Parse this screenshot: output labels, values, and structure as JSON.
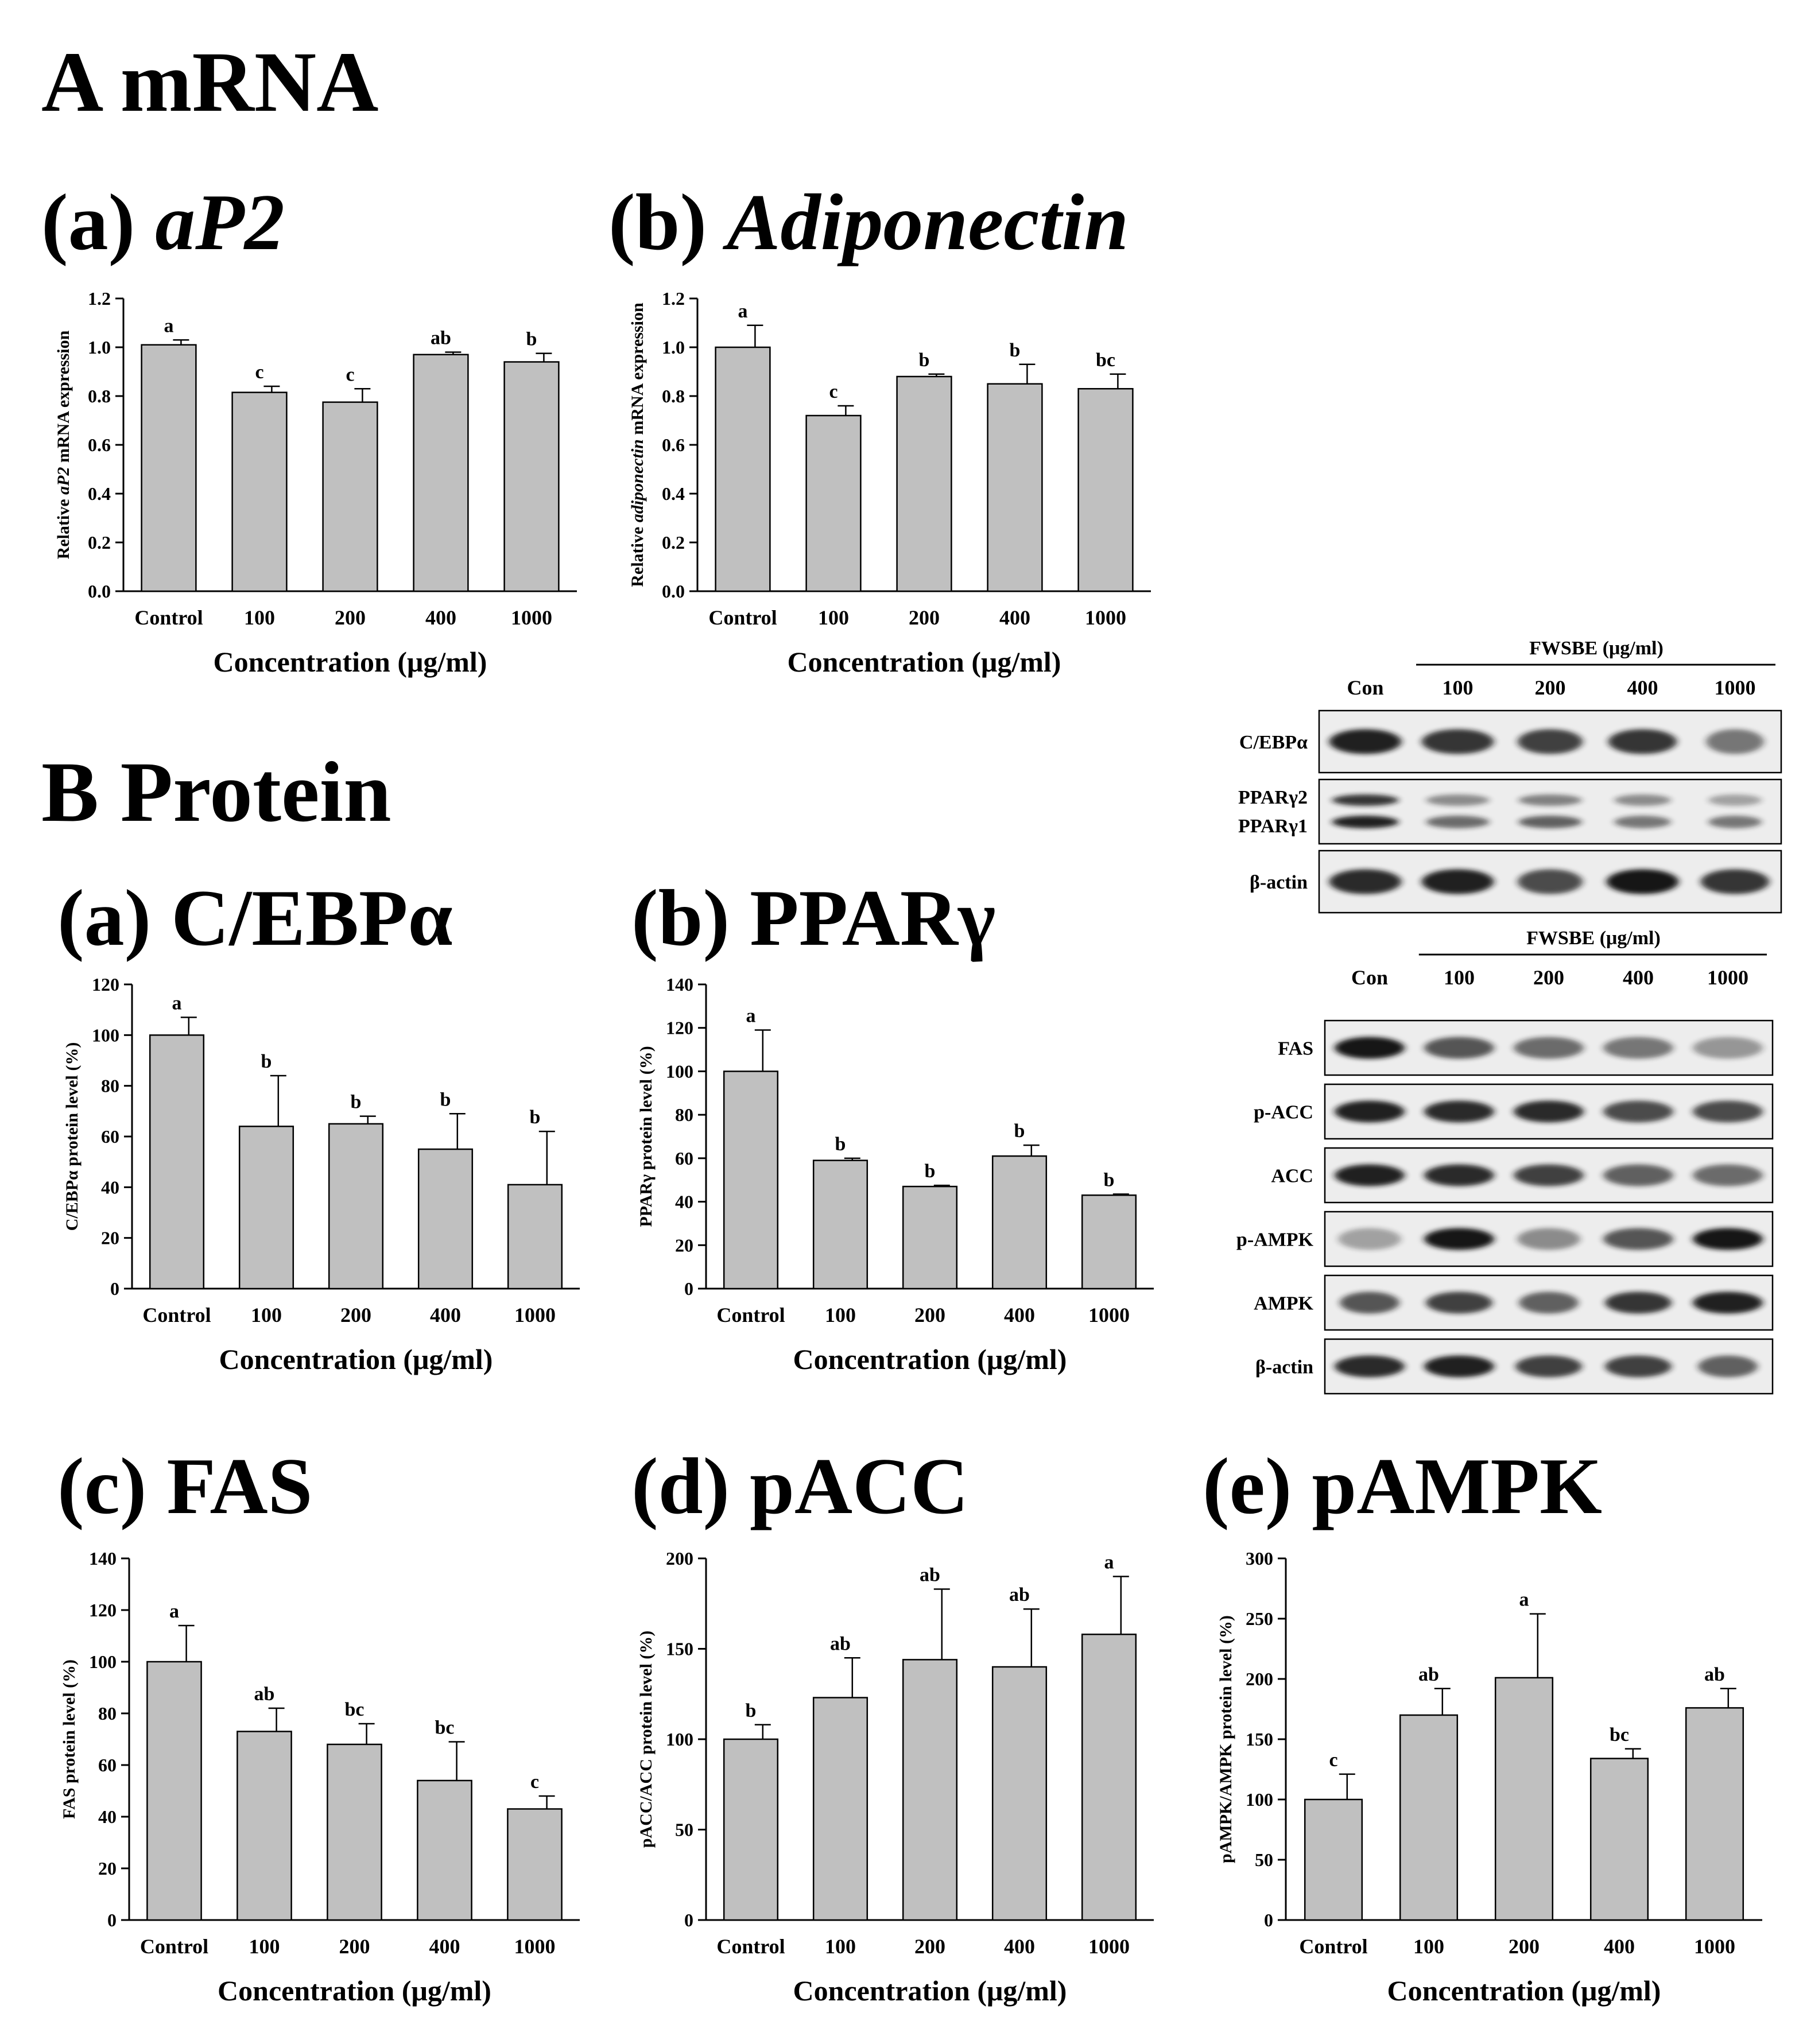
{
  "sections": {
    "A": "A mRNA",
    "B": "B Protein"
  },
  "panels": {
    "A_a": {
      "letter": "(a)",
      "name": "aP2"
    },
    "A_b": {
      "letter": "(b)",
      "name": "Adiponectin"
    },
    "B_a": {
      "letter": "(a)",
      "name": "C/EBPα"
    },
    "B_b": {
      "letter": "(b)",
      "name": "PPARγ"
    },
    "B_c": {
      "letter": "(c)",
      "name": "FAS"
    },
    "B_d": {
      "letter": "(d)",
      "name": "pACC"
    },
    "B_e": {
      "letter": "(e)",
      "name": "pAMPK"
    }
  },
  "colors": {
    "bar": "#c0c0c0",
    "stroke": "#000000",
    "blot_bg": "#ededed",
    "band": "#151515"
  },
  "chart_data": [
    {
      "id": "A_a",
      "type": "bar",
      "categories": [
        "Control",
        "100",
        "200",
        "400",
        "1000"
      ],
      "values": [
        1.01,
        0.815,
        0.775,
        0.97,
        0.94
      ],
      "errors": [
        0.02,
        0.025,
        0.055,
        0.01,
        0.035
      ],
      "labels": [
        "a",
        "c",
        "c",
        "ab",
        "b"
      ],
      "ylim": [
        0,
        1.2
      ],
      "yticks": [
        "0.0",
        "0.2",
        "0.4",
        "0.6",
        "0.8",
        "1.0",
        "1.2"
      ],
      "ylabel_parts": [
        {
          "t": "Relative ",
          "i": false
        },
        {
          "t": "aP2",
          "i": true
        },
        {
          "t": " mRNA expression",
          "i": false
        }
      ],
      "xlabel": "Concentration (μg/ml)"
    },
    {
      "id": "A_b",
      "type": "bar",
      "categories": [
        "Control",
        "100",
        "200",
        "400",
        "1000"
      ],
      "values": [
        1.0,
        0.72,
        0.88,
        0.85,
        0.83
      ],
      "errors": [
        0.09,
        0.04,
        0.01,
        0.08,
        0.06
      ],
      "labels": [
        "a",
        "c",
        "b",
        "b",
        "bc"
      ],
      "ylim": [
        0,
        1.2
      ],
      "yticks": [
        "0.0",
        "0.2",
        "0.4",
        "0.6",
        "0.8",
        "1.0",
        "1.2"
      ],
      "ylabel_parts": [
        {
          "t": "Relative ",
          "i": false
        },
        {
          "t": "adiponectin",
          "i": true
        },
        {
          "t": " mRNA expression",
          "i": false
        }
      ],
      "xlabel": "Concentration (μg/ml)"
    },
    {
      "id": "B_a",
      "type": "bar",
      "categories": [
        "Control",
        "100",
        "200",
        "400",
        "1000"
      ],
      "values": [
        100,
        64,
        65,
        55,
        41
      ],
      "errors": [
        7,
        20,
        3,
        14,
        21
      ],
      "labels": [
        "a",
        "b",
        "b",
        "b",
        "b"
      ],
      "ylim": [
        0,
        120
      ],
      "yticks": [
        "0",
        "20",
        "40",
        "60",
        "80",
        "100",
        "120"
      ],
      "ylabel_parts": [
        {
          "t": "C/EBPα protein level (%)",
          "i": false
        }
      ],
      "xlabel": "Concentration (μg/ml)"
    },
    {
      "id": "B_b",
      "type": "bar",
      "categories": [
        "Control",
        "100",
        "200",
        "400",
        "1000"
      ],
      "values": [
        100,
        59,
        47,
        61,
        43
      ],
      "errors": [
        19,
        1,
        0.5,
        5,
        0.5
      ],
      "labels": [
        "a",
        "b",
        "b",
        "b",
        "b"
      ],
      "ylim": [
        0,
        140
      ],
      "yticks": [
        "0",
        "20",
        "40",
        "60",
        "80",
        "100",
        "120",
        "140"
      ],
      "ylabel_parts": [
        {
          "t": "PPARγ protein level (%)",
          "i": false
        }
      ],
      "xlabel": "Concentration (μg/ml)"
    },
    {
      "id": "B_c",
      "type": "bar",
      "categories": [
        "Control",
        "100",
        "200",
        "400",
        "1000"
      ],
      "values": [
        100,
        73,
        68,
        54,
        43
      ],
      "errors": [
        14,
        9,
        8,
        15,
        5
      ],
      "labels": [
        "a",
        "ab",
        "bc",
        "bc",
        "c"
      ],
      "ylim": [
        0,
        140
      ],
      "yticks": [
        "0",
        "20",
        "40",
        "60",
        "80",
        "100",
        "120",
        "140"
      ],
      "ylabel_parts": [
        {
          "t": "FAS protein level (%)",
          "i": false
        }
      ],
      "xlabel": "Concentration (μg/ml)"
    },
    {
      "id": "B_d",
      "type": "bar",
      "categories": [
        "Control",
        "100",
        "200",
        "400",
        "1000"
      ],
      "values": [
        100,
        123,
        144,
        140,
        158
      ],
      "errors": [
        8,
        22,
        39,
        32,
        32
      ],
      "labels": [
        "b",
        "ab",
        "ab",
        "ab",
        "a"
      ],
      "ylim": [
        0,
        200
      ],
      "yticks": [
        "0",
        "50",
        "100",
        "150",
        "200"
      ],
      "ylabel_parts": [
        {
          "t": "pACC/ACC protein level (%)",
          "i": false
        }
      ],
      "xlabel": "Concentration (μg/ml)"
    },
    {
      "id": "B_e",
      "type": "bar",
      "categories": [
        "Control",
        "100",
        "200",
        "400",
        "1000"
      ],
      "values": [
        100,
        170,
        201,
        134,
        176
      ],
      "errors": [
        21,
        22,
        53,
        8,
        16
      ],
      "labels": [
        "c",
        "ab",
        "a",
        "bc",
        "ab"
      ],
      "ylim": [
        0,
        300
      ],
      "yticks": [
        "0",
        "50",
        "100",
        "150",
        "200",
        "250",
        "300"
      ],
      "ylabel_parts": [
        {
          "t": "pAMPK/AMPK protein level (%)",
          "i": false
        }
      ],
      "xlabel": "Concentration (μg/ml)"
    }
  ],
  "blots": [
    {
      "id": "blot1",
      "treatment": "FWSBE (μg/ml)",
      "lanes": [
        "Con",
        "100",
        "200",
        "400",
        "1000"
      ],
      "rows": [
        {
          "label": "C/EBPα",
          "bands": [
            [
              0.95,
              1.0
            ],
            [
              0.85,
              1.0
            ],
            [
              0.8,
              0.9
            ],
            [
              0.85,
              0.95
            ],
            [
              0.55,
              0.8
            ]
          ]
        },
        {
          "label_top": "PPARγ2",
          "label_bottom": "PPARγ1",
          "double": true,
          "bands": [
            [
              0.85,
              0.95,
              1.0
            ],
            [
              0.45,
              0.6,
              0.95
            ],
            [
              0.5,
              0.65,
              0.95
            ],
            [
              0.45,
              0.55,
              0.85
            ],
            [
              0.35,
              0.55,
              0.8
            ]
          ]
        },
        {
          "label": "β-actin",
          "bands": [
            [
              0.9,
              1.0
            ],
            [
              0.95,
              1.0
            ],
            [
              0.75,
              0.9
            ],
            [
              1.0,
              1.0
            ],
            [
              0.85,
              0.95
            ]
          ]
        }
      ]
    },
    {
      "id": "blot2",
      "treatment": "FWSBE (μg/ml)",
      "lanes": [
        "Con",
        "100",
        "200",
        "400",
        "1000"
      ],
      "rows": [
        {
          "label": "FAS",
          "bands": [
            [
              1.0,
              1.0
            ],
            [
              0.7,
              1.0
            ],
            [
              0.6,
              1.0
            ],
            [
              0.55,
              1.0
            ],
            [
              0.4,
              1.0
            ]
          ]
        },
        {
          "label": "p-ACC",
          "bands": [
            [
              0.95,
              1.0
            ],
            [
              0.9,
              1.0
            ],
            [
              0.9,
              1.0
            ],
            [
              0.75,
              1.0
            ],
            [
              0.75,
              1.0
            ]
          ]
        },
        {
          "label": "ACC",
          "bands": [
            [
              0.95,
              1.0
            ],
            [
              0.9,
              1.0
            ],
            [
              0.8,
              1.0
            ],
            [
              0.65,
              1.0
            ],
            [
              0.6,
              1.0
            ]
          ]
        },
        {
          "label": "p-AMPK",
          "bands": [
            [
              0.35,
              0.9
            ],
            [
              1.0,
              1.0
            ],
            [
              0.45,
              0.9
            ],
            [
              0.7,
              1.0
            ],
            [
              1.0,
              1.0
            ]
          ]
        },
        {
          "label": "AMPK",
          "bands": [
            [
              0.7,
              0.85
            ],
            [
              0.8,
              0.95
            ],
            [
              0.65,
              0.85
            ],
            [
              0.85,
              0.95
            ],
            [
              0.95,
              1.0
            ]
          ]
        },
        {
          "label": "β-actin",
          "bands": [
            [
              0.9,
              1.0
            ],
            [
              0.95,
              1.0
            ],
            [
              0.8,
              0.95
            ],
            [
              0.8,
              0.95
            ],
            [
              0.65,
              0.85
            ]
          ]
        }
      ]
    }
  ]
}
